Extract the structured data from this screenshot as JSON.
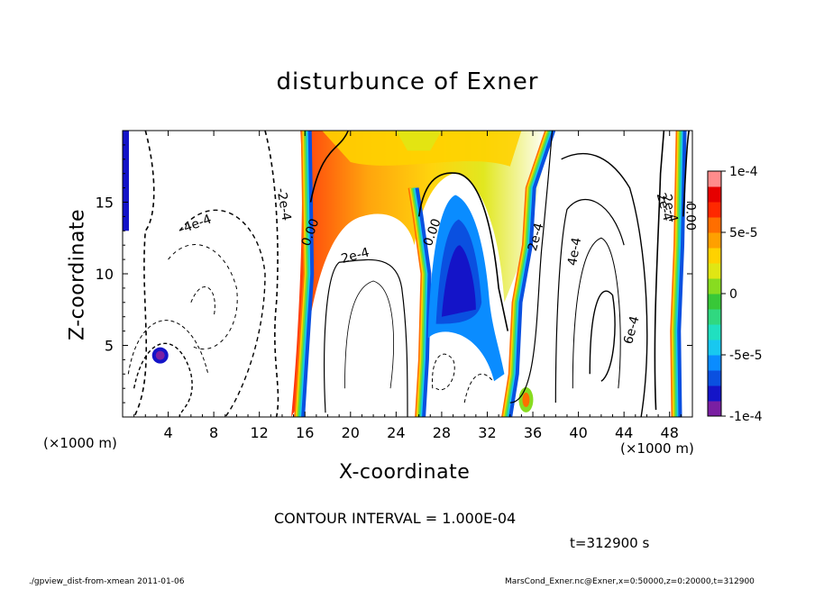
{
  "chart_data": {
    "type": "heatmap",
    "title": "disturbunce of Exner",
    "xlabel": "X-coordinate",
    "ylabel": "Z-coordinate",
    "x_unit_label": "(×1000 m)",
    "z_unit_label": "(×1000 m)",
    "xlim": [
      0,
      50
    ],
    "ylim": [
      0,
      20
    ],
    "x_ticks": [
      4,
      8,
      12,
      16,
      20,
      24,
      28,
      32,
      36,
      40,
      44,
      48
    ],
    "x_tick_labels": [
      "4",
      "8",
      "12",
      "16",
      "20",
      "24",
      "28",
      "32",
      "36",
      "40",
      "44",
      "48"
    ],
    "y_ticks": [
      5,
      10,
      15
    ],
    "y_tick_labels": [
      "5",
      "10",
      "15"
    ],
    "colorbar": {
      "min": -0.0001,
      "max": 0.0001,
      "tick_labels": [
        "1e-4",
        "5e-5",
        "0",
        "-5e-5",
        "-1e-4"
      ],
      "tick_values": [
        0.0001,
        5e-05,
        0,
        -5e-05,
        -0.0001
      ],
      "colors": [
        "#7a1fa2",
        "#1414c8",
        "#0a50e0",
        "#0a8cff",
        "#18c8f0",
        "#20e0c0",
        "#30d880",
        "#38c838",
        "#88dc20",
        "#e0e614",
        "#ffd200",
        "#ffa000",
        "#ff6e00",
        "#ff2800",
        "#e60000",
        "#ff8c8c"
      ]
    },
    "contour_labels": [
      "-4e-4",
      "-2e-4",
      "0.00",
      "2e-4",
      "0.00",
      "2e-4",
      "2e-4",
      "4e-4",
      "2e-4",
      "0.00",
      "6e-4"
    ],
    "contour_interval": "CONTOUR INTERVAL = 1.000E-04",
    "time_label": "t=312900 s"
  },
  "footer": {
    "left": "./gpview_dist-from-xmean  2011-01-06",
    "right": "MarsCond_Exner.nc@Exner,x=0:50000,z=0:20000,t=312900"
  }
}
